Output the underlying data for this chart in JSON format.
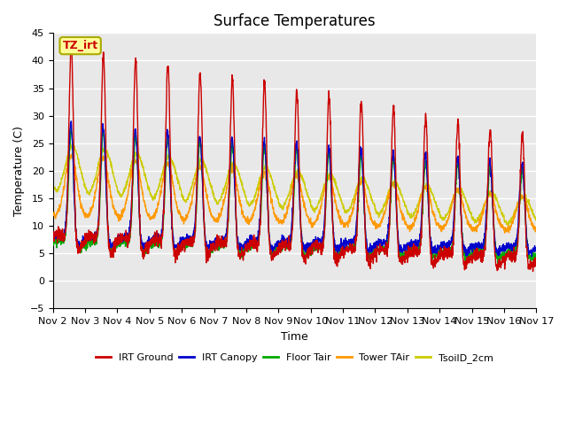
{
  "title": "Surface Temperatures",
  "ylabel": "Temperature (C)",
  "xlabel": "Time",
  "ylim": [
    -5,
    45
  ],
  "annotation_text": "TZ_irt",
  "x_tick_labels": [
    "Nov 2",
    "Nov 3",
    "Nov 4",
    "Nov 5",
    "Nov 6",
    "Nov 7",
    "Nov 8",
    "Nov 9",
    "Nov 10",
    "Nov 11",
    "Nov 12",
    "Nov 13",
    "Nov 14",
    "Nov 15",
    "Nov 16",
    "Nov 17"
  ],
  "legend_entries": [
    {
      "label": "IRT Ground",
      "color": "#cc0000"
    },
    {
      "label": "IRT Canopy",
      "color": "#0000cc"
    },
    {
      "label": "Floor Tair",
      "color": "#00aa00"
    },
    {
      "label": "Tower TAir",
      "color": "#ff9900"
    },
    {
      "label": "TsoilD_2cm",
      "color": "#cccc00"
    }
  ],
  "plot_bg_color": "#e8e8e8",
  "grid_color": "#ffffff",
  "title_fontsize": 12,
  "label_fontsize": 9,
  "tick_fontsize": 8
}
